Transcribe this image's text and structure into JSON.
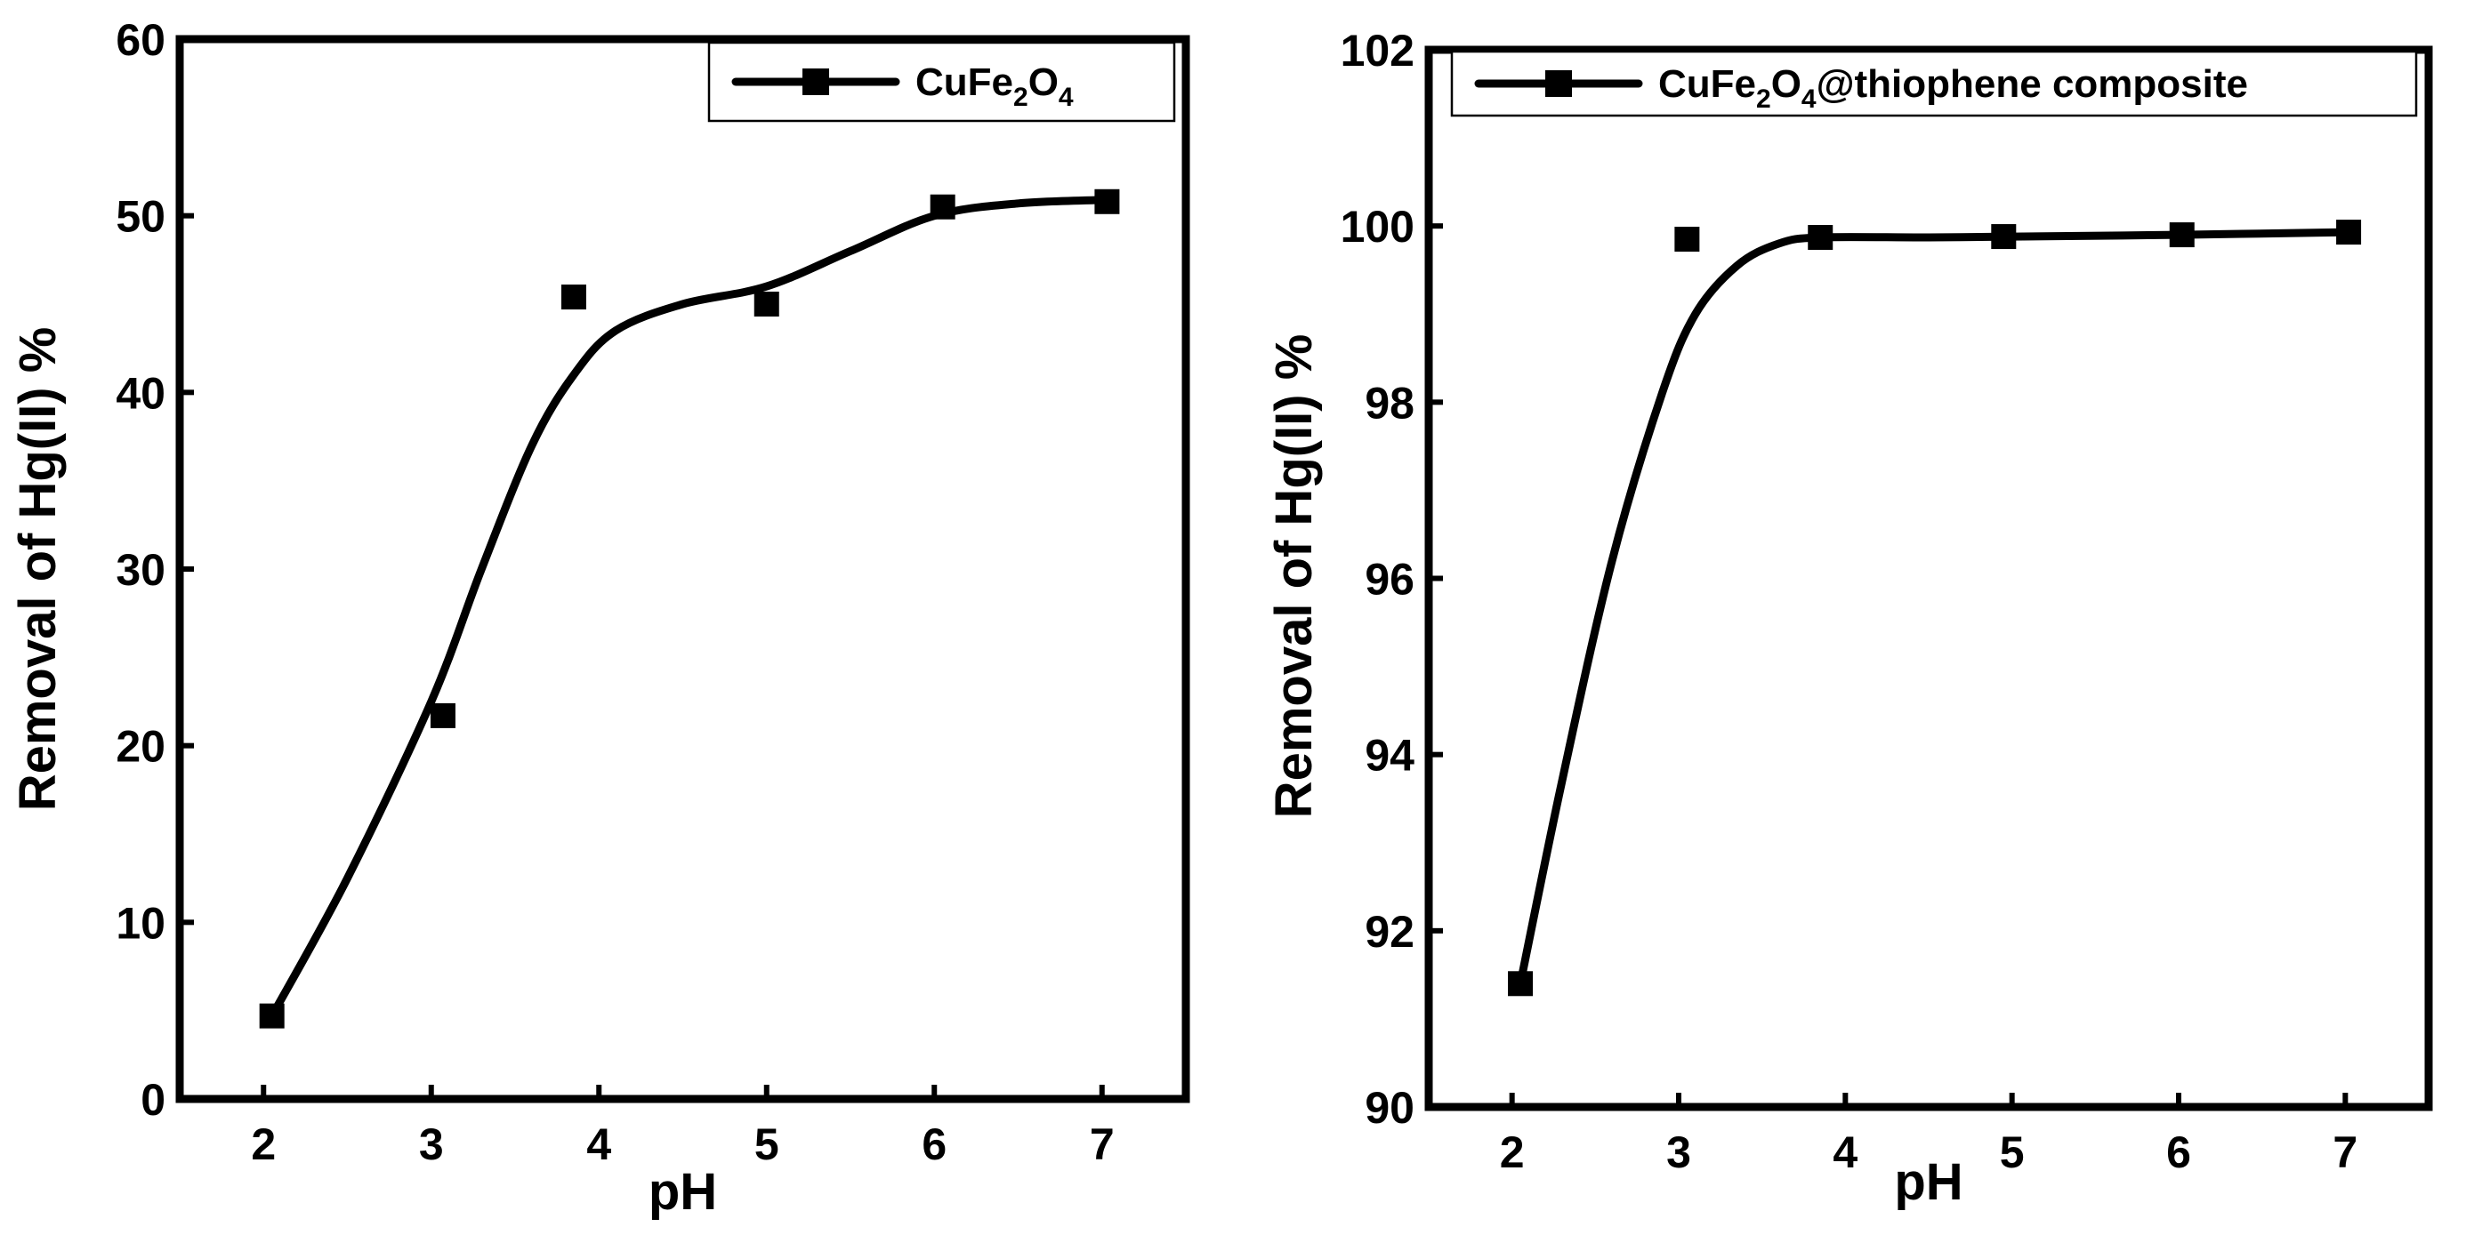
{
  "chart_data": [
    {
      "type": "line",
      "title": "",
      "xlabel": "pH",
      "ylabel": "Removal of Hg(II) %",
      "xlim": [
        1.5,
        7.5
      ],
      "ylim": [
        0,
        60
      ],
      "x_ticks": [
        2,
        3,
        4,
        5,
        6,
        7
      ],
      "y_ticks": [
        0,
        10,
        20,
        30,
        40,
        50,
        60
      ],
      "legend_position": "top-right",
      "series": [
        {
          "name": "CuFe2O4",
          "legend_parts": [
            "CuFe",
            "2",
            "O",
            "4",
            ""
          ],
          "marker": "square",
          "color": "#000000",
          "points": [
            [
              2.05,
              4.7
            ],
            [
              3.07,
              21.7
            ],
            [
              3.85,
              45.4
            ],
            [
              5.0,
              45.0
            ],
            [
              6.05,
              50.5
            ],
            [
              7.03,
              50.8
            ]
          ],
          "curve": [
            [
              2.05,
              4.7
            ],
            [
              2.5,
              12.5
            ],
            [
              3.0,
              22.5
            ],
            [
              3.3,
              30.0
            ],
            [
              3.6,
              37.0
            ],
            [
              3.85,
              41.0
            ],
            [
              4.1,
              43.5
            ],
            [
              4.5,
              45.0
            ],
            [
              5.0,
              46.0
            ],
            [
              5.5,
              48.0
            ],
            [
              6.0,
              50.0
            ],
            [
              6.5,
              50.7
            ],
            [
              7.03,
              50.9
            ]
          ]
        }
      ]
    },
    {
      "type": "line",
      "title": "",
      "xlabel": "pH",
      "ylabel": "Removal of Hg(II) %",
      "xlim": [
        1.5,
        7.5
      ],
      "ylim": [
        90,
        102
      ],
      "x_ticks": [
        2,
        3,
        4,
        5,
        6,
        7
      ],
      "y_ticks": [
        90,
        92,
        94,
        96,
        98,
        100,
        102
      ],
      "legend_position": "top",
      "series": [
        {
          "name": "CuFe2O4@thiophene composite",
          "legend_parts": [
            "CuFe",
            "2",
            "O",
            "4",
            "@thiophene composite"
          ],
          "marker": "square",
          "color": "#000000",
          "points": [
            [
              2.05,
              91.4
            ],
            [
              3.05,
              99.85
            ],
            [
              3.85,
              99.87
            ],
            [
              4.95,
              99.88
            ],
            [
              6.02,
              99.9
            ],
            [
              7.02,
              99.93
            ]
          ],
          "curve": [
            [
              2.05,
              91.4
            ],
            [
              2.3,
              93.7
            ],
            [
              2.6,
              96.2
            ],
            [
              2.9,
              98.1
            ],
            [
              3.1,
              99.0
            ],
            [
              3.35,
              99.55
            ],
            [
              3.6,
              99.8
            ],
            [
              3.85,
              99.87
            ],
            [
              4.5,
              99.87
            ],
            [
              5.0,
              99.88
            ],
            [
              6.0,
              99.9
            ],
            [
              7.02,
              99.93
            ]
          ]
        }
      ]
    }
  ]
}
